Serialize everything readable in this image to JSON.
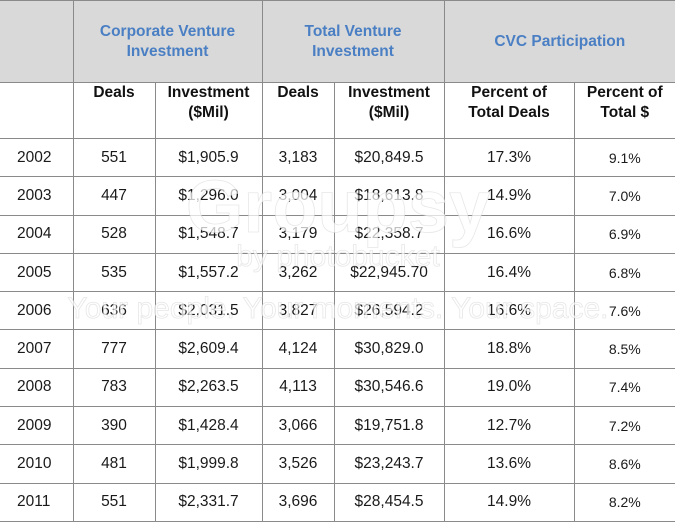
{
  "header_groups": [
    "Corporate Venture\nInvestment",
    "Total Venture\nInvestment",
    "CVC Participation"
  ],
  "columns": [
    "Deals",
    "Investment\n($Mil)",
    "Deals",
    "Investment\n($Mil)",
    "Percent of\nTotal Deals",
    "Percent of\nTotal $"
  ],
  "rows": [
    {
      "year": "2002",
      "cv_deals": "551",
      "cv_inv": "$1,905.9",
      "tv_deals": "3,183",
      "tv_inv": "$20,849.5",
      "pct_deals": "17.3%",
      "pct_dollars": "9.1%"
    },
    {
      "year": "2003",
      "cv_deals": "447",
      "cv_inv": "$1,296.0",
      "tv_deals": "3,004",
      "tv_inv": "$18,613.8",
      "pct_deals": "14.9%",
      "pct_dollars": "7.0%"
    },
    {
      "year": "2004",
      "cv_deals": "528",
      "cv_inv": "$1,548.7",
      "tv_deals": "3,179",
      "tv_inv": "$22,358.7",
      "pct_deals": "16.6%",
      "pct_dollars": "6.9%"
    },
    {
      "year": "2005",
      "cv_deals": "535",
      "cv_inv": "$1,557.2",
      "tv_deals": "3,262",
      "tv_inv": "$22,945.70",
      "pct_deals": "16.4%",
      "pct_dollars": "6.8%"
    },
    {
      "year": "2006",
      "cv_deals": "636",
      "cv_inv": "$2,031.5",
      "tv_deals": "3,827",
      "tv_inv": "$26,594.2",
      "pct_deals": "16.6%",
      "pct_dollars": "7.6%"
    },
    {
      "year": "2007",
      "cv_deals": "777",
      "cv_inv": "$2,609.4",
      "tv_deals": "4,124",
      "tv_inv": "$30,829.0",
      "pct_deals": "18.8%",
      "pct_dollars": "8.5%"
    },
    {
      "year": "2008",
      "cv_deals": "783",
      "cv_inv": "$2,263.5",
      "tv_deals": "4,113",
      "tv_inv": "$30,546.6",
      "pct_deals": "19.0%",
      "pct_dollars": "7.4%"
    },
    {
      "year": "2009",
      "cv_deals": "390",
      "cv_inv": "$1,428.4",
      "tv_deals": "3,066",
      "tv_inv": "$19,751.8",
      "pct_deals": "12.7%",
      "pct_dollars": "7.2%"
    },
    {
      "year": "2010",
      "cv_deals": "481",
      "cv_inv": "$1,999.8",
      "tv_deals": "3,526",
      "tv_inv": "$23,243.7",
      "pct_deals": "13.6%",
      "pct_dollars": "8.6%"
    },
    {
      "year": "2011",
      "cv_deals": "551",
      "cv_inv": "$2,331.7",
      "tv_deals": "3,696",
      "tv_inv": "$28,454.5",
      "pct_deals": "14.9%",
      "pct_dollars": "8.2%"
    }
  ],
  "watermark": {
    "logo": "Groupsy",
    "by": "by photobucket",
    "tagline": "Your people. Your moments. Your space."
  },
  "colors": {
    "header_bg": "#d9d9d9",
    "header_text": "#4a7fc4",
    "border": "#8a8a8a"
  }
}
